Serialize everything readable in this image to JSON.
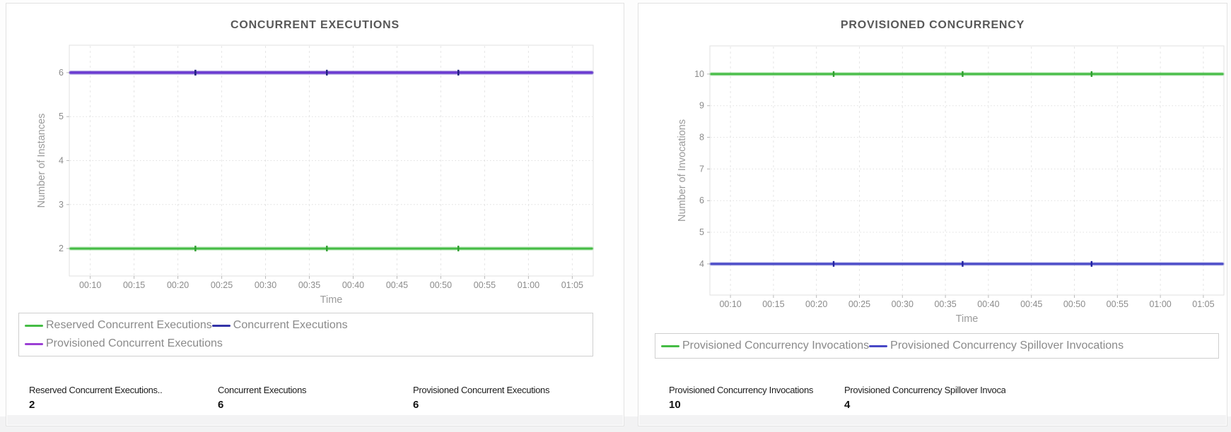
{
  "colors": {
    "green": "#45BC45",
    "navy": "#3333A8",
    "purple_line": "#6B39D2",
    "purple_legend": "#9B3FD4",
    "blue": "#4747C6",
    "grid": "#e6e6e6",
    "axis_text": "#8b8b8b"
  },
  "chart_data": [
    {
      "type": "line",
      "title": "CONCURRENT EXECUTIONS",
      "xlabel": "Time",
      "ylabel": "Number of Instances",
      "x_ticks": [
        "00:10",
        "00:15",
        "00:20",
        "00:25",
        "00:30",
        "00:35",
        "00:40",
        "00:45",
        "00:50",
        "00:55",
        "01:00",
        "01:05"
      ],
      "y_ticks": [
        2,
        3,
        4,
        5,
        6
      ],
      "ylim": [
        1.4,
        6.7
      ],
      "grid": true,
      "legend_position": "bottom",
      "marker_times": [
        "00:22",
        "00:37",
        "00:52"
      ],
      "series": [
        {
          "name": "Reserved Concurrent Executions",
          "color": "#45BC45",
          "marker_color": "#2F9E2F",
          "value": 2,
          "x": [
            "00:07",
            "00:22",
            "00:37",
            "00:52",
            "01:07"
          ],
          "y": [
            2,
            2,
            2,
            2,
            2
          ]
        },
        {
          "name": "Concurrent Executions",
          "color": "#3333A8",
          "marker_color": "#22227F",
          "value": 6,
          "x": [
            "00:07",
            "00:22",
            "00:37",
            "00:52",
            "01:07"
          ],
          "y": [
            6,
            6,
            6,
            6,
            6
          ]
        },
        {
          "name": "Provisioned Concurrent Executions",
          "color": "#6B39D2",
          "legend_color": "#9B3FD4",
          "marker_color": "#22227F",
          "value": 6,
          "x": [
            "00:07",
            "00:22",
            "00:37",
            "00:52",
            "01:07"
          ],
          "y": [
            6,
            6,
            6,
            6,
            6
          ]
        }
      ],
      "stats": [
        {
          "label": "Reserved Concurrent Executions..",
          "value": "2"
        },
        {
          "label": "Concurrent Executions",
          "value": "6"
        },
        {
          "label": "Provisioned Concurrent Executions",
          "value": "6"
        }
      ]
    },
    {
      "type": "line",
      "title": "PROVISIONED CONCURRENCY",
      "xlabel": "Time",
      "ylabel": "Number of Invocations",
      "x_ticks": [
        "00:10",
        "00:15",
        "00:20",
        "00:25",
        "00:30",
        "00:35",
        "00:40",
        "00:45",
        "00:50",
        "00:55",
        "01:00",
        "01:05"
      ],
      "y_ticks": [
        4,
        5,
        6,
        7,
        8,
        9,
        10
      ],
      "ylim": [
        3.2,
        10.8
      ],
      "grid": true,
      "legend_position": "bottom",
      "marker_times": [
        "00:22",
        "00:37",
        "00:52"
      ],
      "series": [
        {
          "name": "Provisioned Concurrency Invocations",
          "color": "#45BC45",
          "marker_color": "#2F9E2F",
          "value": 10,
          "x": [
            "00:07",
            "00:22",
            "00:37",
            "00:52",
            "01:07"
          ],
          "y": [
            10,
            10,
            10,
            10,
            10
          ]
        },
        {
          "name": "Provisioned Concurrency Spillover Invocations",
          "color": "#4747C6",
          "marker_color": "#2222A0",
          "value": 4,
          "x": [
            "00:07",
            "00:22",
            "00:37",
            "00:52",
            "01:07"
          ],
          "y": [
            4,
            4,
            4,
            4,
            4
          ]
        }
      ],
      "stats": [
        {
          "label": "Provisioned Concurrency Invocations",
          "value": "10"
        },
        {
          "label": "Provisioned Concurrency Spillover Invocations",
          "value": "4"
        }
      ]
    }
  ]
}
